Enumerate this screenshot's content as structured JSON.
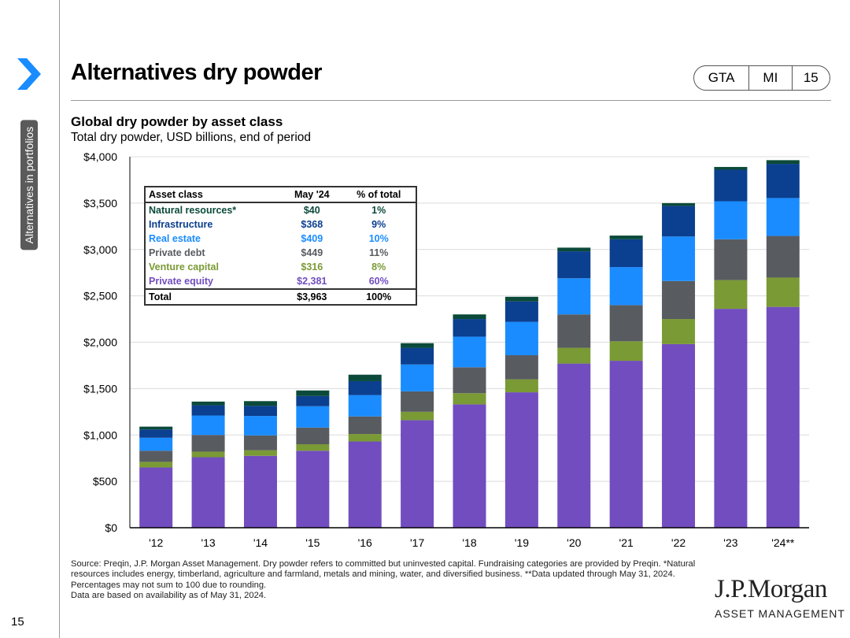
{
  "sidebar": {
    "section_label": "Alternatives in portfolios",
    "page_number": "15"
  },
  "header": {
    "title": "Alternatives dry powder",
    "tags": [
      "GTA",
      "MI",
      "15"
    ]
  },
  "chart_title": "Global dry powder by asset class",
  "chart_subtitle": "Total dry powder, USD billions, end of period",
  "colors": {
    "private_equity": "#714dbf",
    "venture_capital": "#7a9a35",
    "private_debt": "#585b60",
    "real_estate": "#1a8cff",
    "infrastructure": "#0b3f8f",
    "natural_resources": "#0b4a3a",
    "accent": "#1a8cff"
  },
  "chart_data": {
    "type": "bar",
    "stacked": true,
    "categories": [
      "'12",
      "'13",
      "'14",
      "'15",
      "'16",
      "'17",
      "'18",
      "'19",
      "'20",
      "'21",
      "'22",
      "'23",
      "'24**"
    ],
    "series": [
      {
        "name": "Private equity",
        "values": [
          650,
          760,
          775,
          830,
          930,
          1160,
          1330,
          1460,
          1770,
          1800,
          1980,
          2360,
          2381
        ]
      },
      {
        "name": "Venture capital",
        "values": [
          60,
          60,
          60,
          70,
          80,
          90,
          120,
          140,
          170,
          210,
          270,
          310,
          316
        ]
      },
      {
        "name": "Private debt",
        "values": [
          120,
          180,
          160,
          180,
          190,
          220,
          280,
          260,
          360,
          390,
          410,
          440,
          449
        ]
      },
      {
        "name": "Real estate",
        "values": [
          140,
          210,
          210,
          230,
          230,
          290,
          330,
          360,
          390,
          410,
          480,
          410,
          409
        ]
      },
      {
        "name": "Infrastructure",
        "values": [
          90,
          110,
          110,
          110,
          150,
          180,
          190,
          220,
          290,
          300,
          330,
          340,
          368
        ]
      },
      {
        "name": "Natural resources",
        "values": [
          30,
          40,
          50,
          60,
          70,
          50,
          50,
          50,
          40,
          40,
          30,
          30,
          40
        ]
      }
    ],
    "ylim": [
      0,
      4000
    ],
    "yticks": [
      0,
      500,
      1000,
      1500,
      2000,
      2500,
      3000,
      3500,
      4000
    ],
    "ytick_labels": [
      "$0",
      "$500",
      "$1,000",
      "$1,500",
      "$2,000",
      "$2,500",
      "$3,000",
      "$3,500",
      "$4,000"
    ],
    "xlabel": "",
    "ylabel": "",
    "grid": true
  },
  "table": {
    "headers": [
      "Asset class",
      "May '24",
      "% of total"
    ],
    "rows": [
      {
        "label": "Natural resources*",
        "value": "$40",
        "pct": "1%",
        "color": "#0b4a3a"
      },
      {
        "label": "Infrastructure",
        "value": "$368",
        "pct": "9%",
        "color": "#0b3f8f"
      },
      {
        "label": "Real estate",
        "value": "$409",
        "pct": "10%",
        "color": "#1a8cff"
      },
      {
        "label": "Private debt",
        "value": "$449",
        "pct": "11%",
        "color": "#585b60"
      },
      {
        "label": "Venture capital",
        "value": "$316",
        "pct": "8%",
        "color": "#7a9a35"
      },
      {
        "label": "Private equity",
        "value": "$2,381",
        "pct": "60%",
        "color": "#714dbf"
      }
    ],
    "total": {
      "label": "Total",
      "value": "$3,963",
      "pct": "100%"
    }
  },
  "footnote": {
    "line1": "Source: Preqin, J.P. Morgan Asset Management. Dry powder refers to committed but uninvested capital. Fundraising categories are provided by Preqin. *Natural resources includes energy, timberland, agriculture and farmland, metals and mining, water, and diversified business. **Data updated through May 31, 2024. Percentages may not sum to 100 due to rounding.",
    "line2": "Data are based on availability as of May 31, 2024."
  },
  "logo": {
    "name": "J.P.Morgan",
    "subtitle": "ASSET MANAGEMENT"
  }
}
